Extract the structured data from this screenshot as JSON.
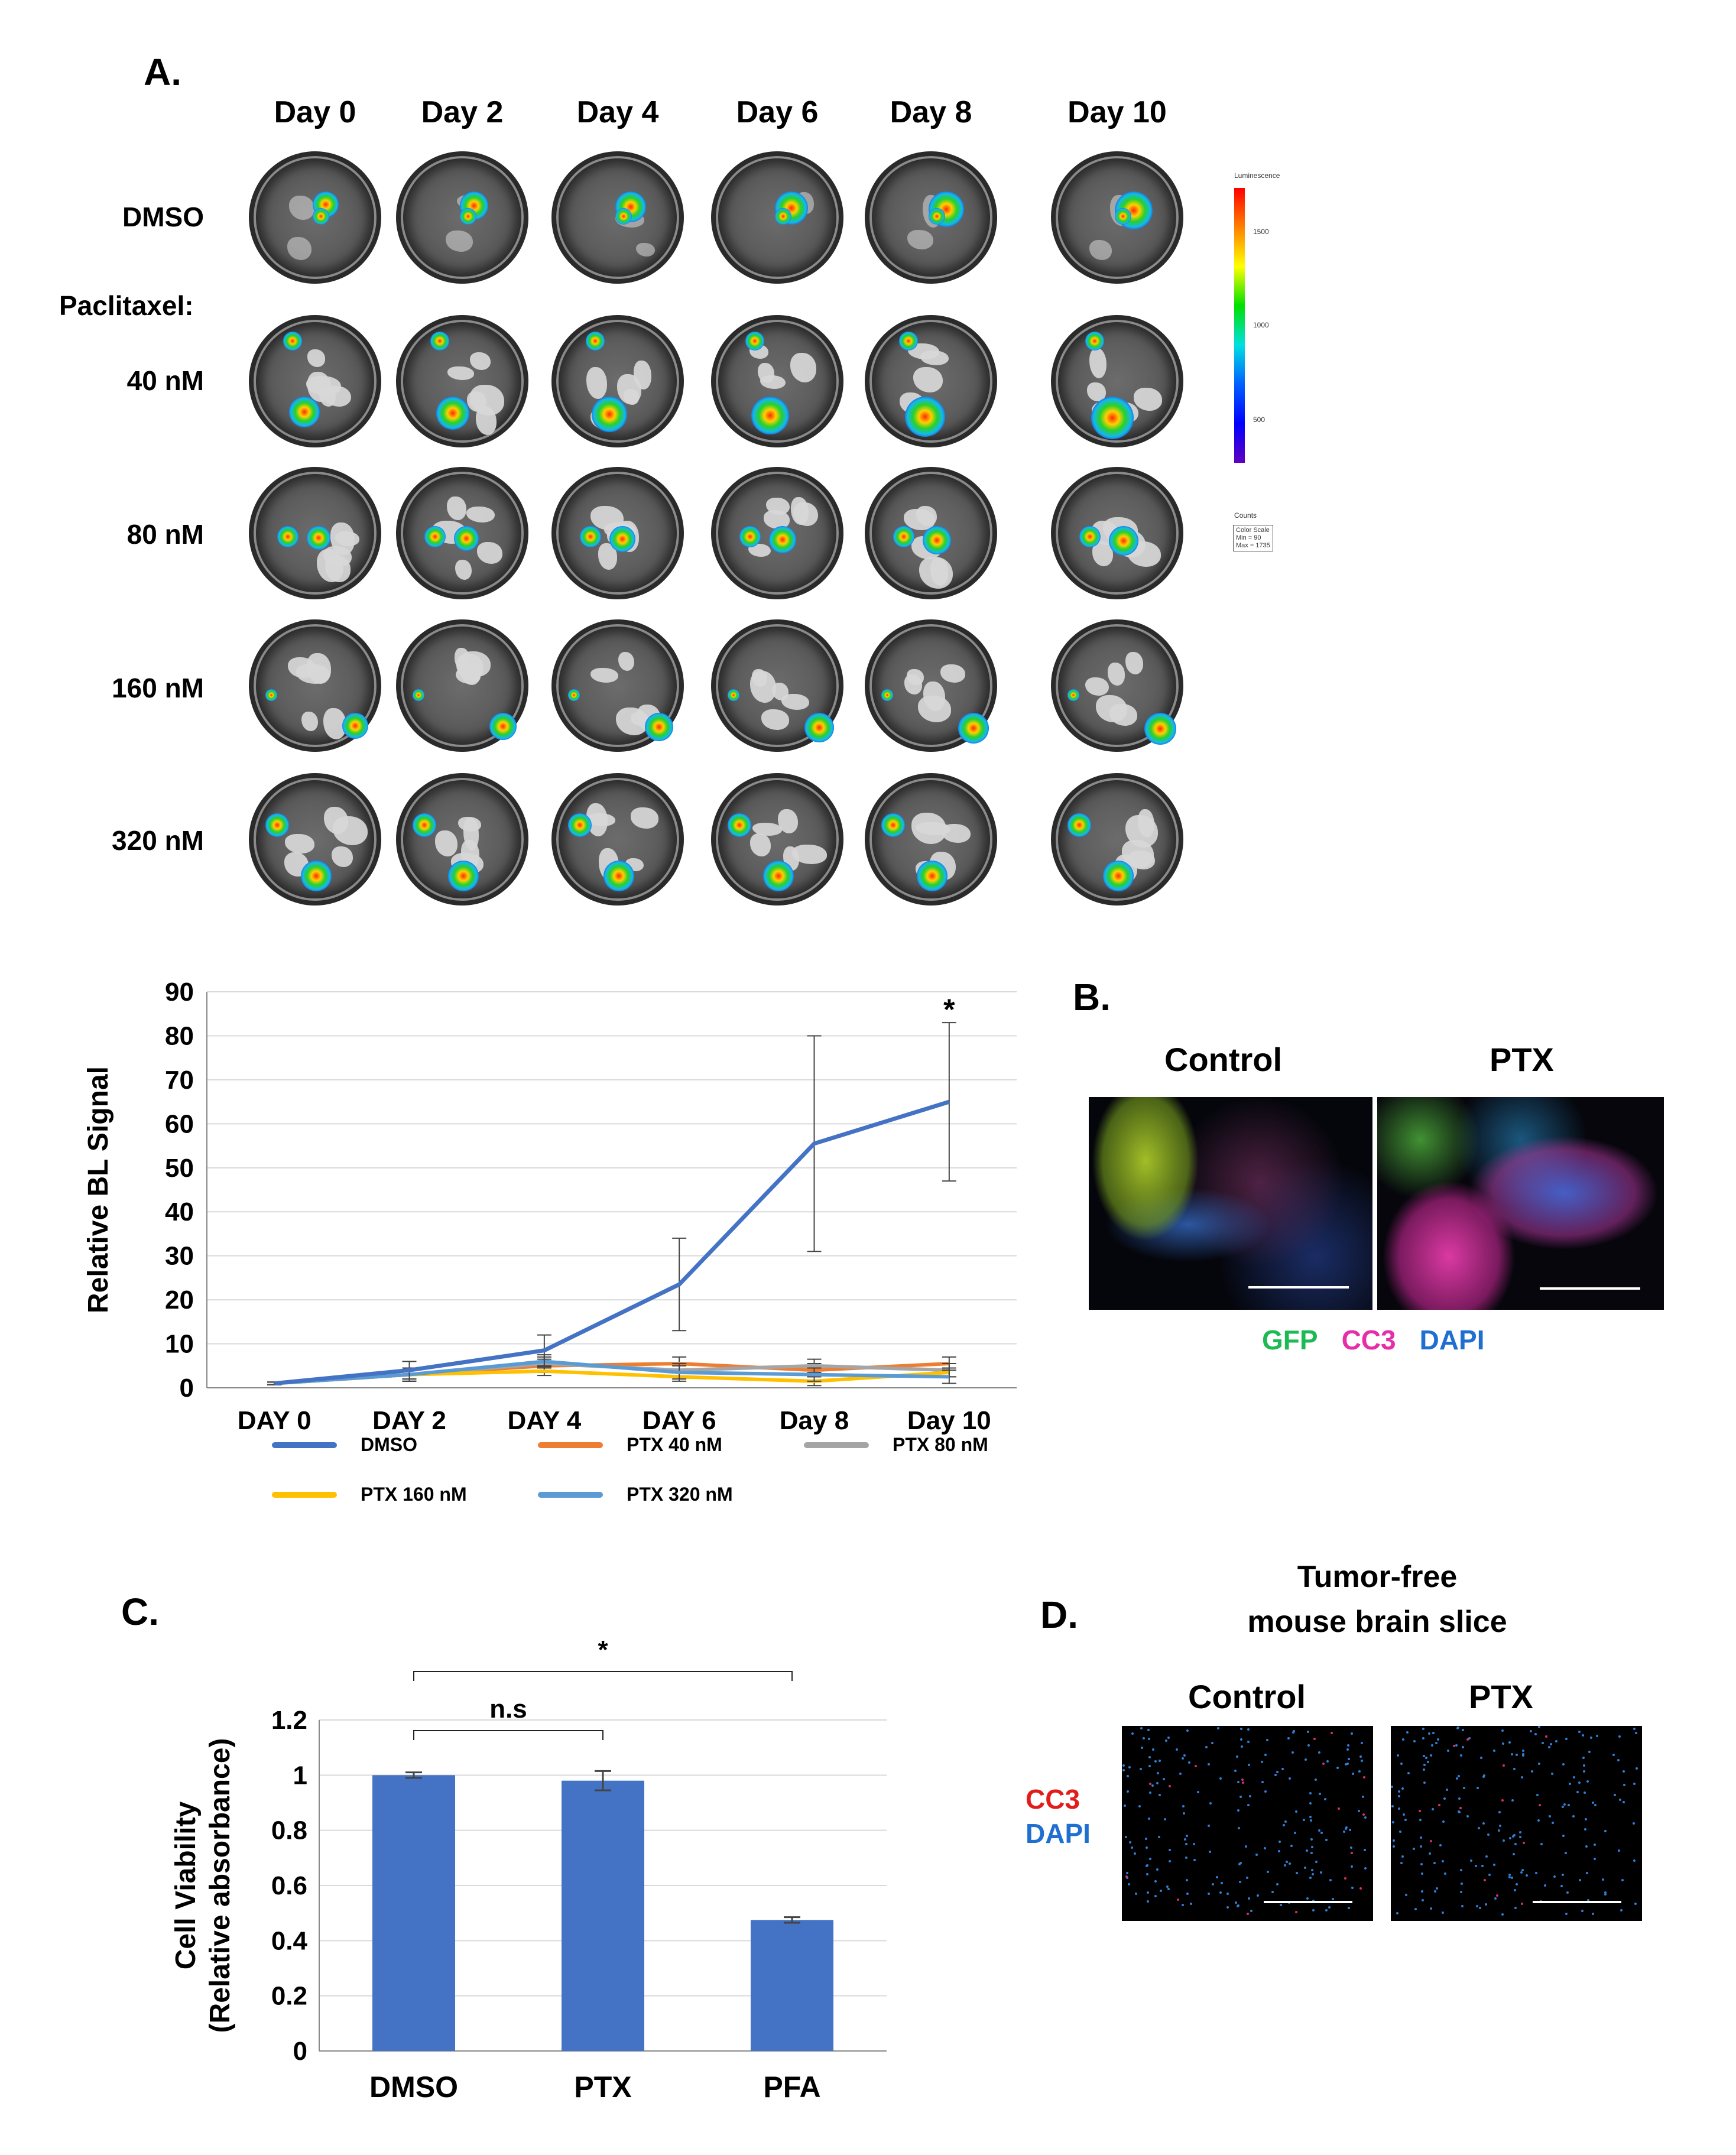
{
  "panelA": {
    "letter": "A.",
    "days": [
      "Day 0",
      "Day 2",
      "Day 4",
      "Day 6",
      "Day 8",
      "Day 10"
    ],
    "rows": [
      "DMSO",
      "40 nM",
      "80 nM",
      "160 nM",
      "320 nM"
    ],
    "paclitaxel_label": "Paclitaxel:",
    "colorbar": {
      "title": "Luminescence",
      "ticks": [
        "1500",
        "1000",
        "500"
      ],
      "counts": "Counts",
      "scale_line1": "Color Scale",
      "scale_line2": "Min = 90",
      "scale_line3": "Max = 1735"
    }
  },
  "panelB": {
    "letter": "B.",
    "control": "Control",
    "ptx": "PTX",
    "stain_gfp": "GFP",
    "stain_cc3": "CC3",
    "stain_dapi": "DAPI"
  },
  "panelD": {
    "letter": "D.",
    "title_line1": "Tumor-free",
    "title_line2": "mouse brain slice",
    "control": "Control",
    "ptx": "PTX",
    "stain_cc3": "CC3",
    "stain_dapi": "DAPI"
  },
  "panelC": {
    "letter": "C."
  },
  "chart_data": [
    {
      "type": "line",
      "id": "bl-signal",
      "ylabel": "Relative BL Signal",
      "ylim": [
        0,
        90
      ],
      "yticks": [
        0,
        10,
        20,
        30,
        40,
        50,
        60,
        70,
        80,
        90
      ],
      "categories": [
        "DAY 0",
        "DAY 2",
        "DAY 4",
        "DAY 6",
        "Day 8",
        "Day 10"
      ],
      "annotation": "*",
      "series": [
        {
          "name": "DMSO",
          "color": "#4472C4",
          "values": [
            1,
            4,
            8.5,
            23.5,
            55.5,
            65
          ],
          "err": [
            0.3,
            2,
            3.5,
            10.5,
            24.5,
            18
          ]
        },
        {
          "name": "PTX 40 nM",
          "color": "#ED7D31",
          "values": [
            1,
            3,
            5,
            5.5,
            4,
            5.5
          ],
          "err": [
            0.3,
            1.5,
            1.5,
            1.5,
            1.5,
            1.5
          ]
        },
        {
          "name": "PTX 80 nM",
          "color": "#A5A5A5",
          "values": [
            1,
            3,
            5.5,
            4,
            5,
            4
          ],
          "err": [
            0.3,
            1.5,
            1.5,
            1.5,
            1.5,
            1.5
          ]
        },
        {
          "name": "PTX 160 nM",
          "color": "#FFC000",
          "values": [
            1,
            3,
            3.8,
            2.5,
            1.5,
            3.5
          ],
          "err": [
            0.3,
            1,
            1,
            1,
            1,
            1
          ]
        },
        {
          "name": "PTX 320 nM",
          "color": "#5B9BD5",
          "values": [
            1,
            3,
            6,
            3.5,
            3,
            2.5
          ],
          "err": [
            0.3,
            1.5,
            1.5,
            1.5,
            1.5,
            1.5
          ]
        }
      ]
    },
    {
      "type": "bar",
      "id": "cell-viability",
      "ylabel_line1": "Cell Viability",
      "ylabel_line2": "(Relative absorbance)",
      "ylim": [
        0,
        1.2
      ],
      "yticks": [
        "0",
        "0.2",
        "0.4",
        "0.6",
        "0.8",
        "1",
        "1.2"
      ],
      "categories": [
        "DMSO",
        "PTX",
        "PFA"
      ],
      "values": [
        1.0,
        0.98,
        0.475
      ],
      "err": [
        0.01,
        0.035,
        0.01
      ],
      "color": "#4472C4",
      "brackets": [
        {
          "from": "DMSO",
          "to": "PTX",
          "label": "n.s"
        },
        {
          "from": "DMSO",
          "to": "PFA",
          "label": "*"
        }
      ]
    }
  ]
}
